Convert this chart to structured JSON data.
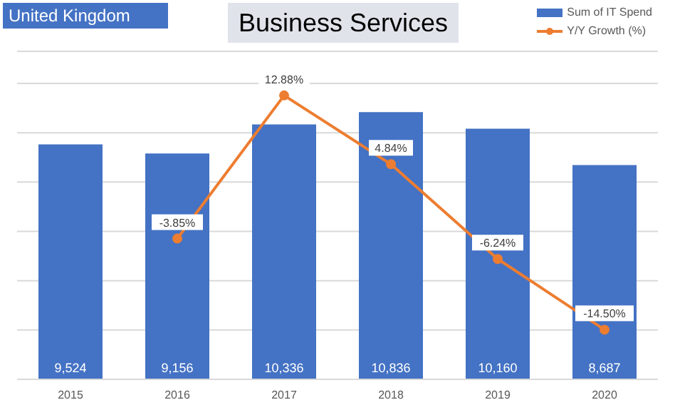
{
  "chart_data": {
    "type": "bar",
    "title": "Business Services",
    "subtitle": "United Kingdom",
    "categories": [
      "2015",
      "2016",
      "2017",
      "2018",
      "2019",
      "2020"
    ],
    "series": [
      {
        "name": "Sum of IT Spend",
        "color": "#4472c4",
        "values": [
          9524,
          9156,
          10336,
          10836,
          10160,
          8687
        ],
        "value_labels": [
          "9,524",
          "9,156",
          "10,336",
          "10,836",
          "10,160",
          "8,687"
        ]
      },
      {
        "name": "Y/Y Growth (%)",
        "type": "line",
        "axis": "y2",
        "color": "#ed7d31",
        "marker": "circle",
        "values": [
          null,
          -3.85,
          12.88,
          4.84,
          -6.24,
          -14.5
        ],
        "value_labels": [
          null,
          "-3.85%",
          "12.88%",
          "4.84%",
          "-6.24%",
          "-14.50%"
        ]
      }
    ],
    "ylim": [
      0,
      13300
    ],
    "yticks": [
      {
        "value": 0,
        "label": null
      },
      {
        "value": 2000,
        "label": null
      },
      {
        "value": 4000,
        "label": null
      },
      {
        "value": 6000,
        "label": null
      },
      {
        "value": 8000,
        "label": null
      },
      {
        "value": 10000,
        "label": null
      },
      {
        "value": 12000,
        "label": null
      }
    ],
    "grid": "y",
    "legend": "top right",
    "tick_labels": "x"
  }
}
